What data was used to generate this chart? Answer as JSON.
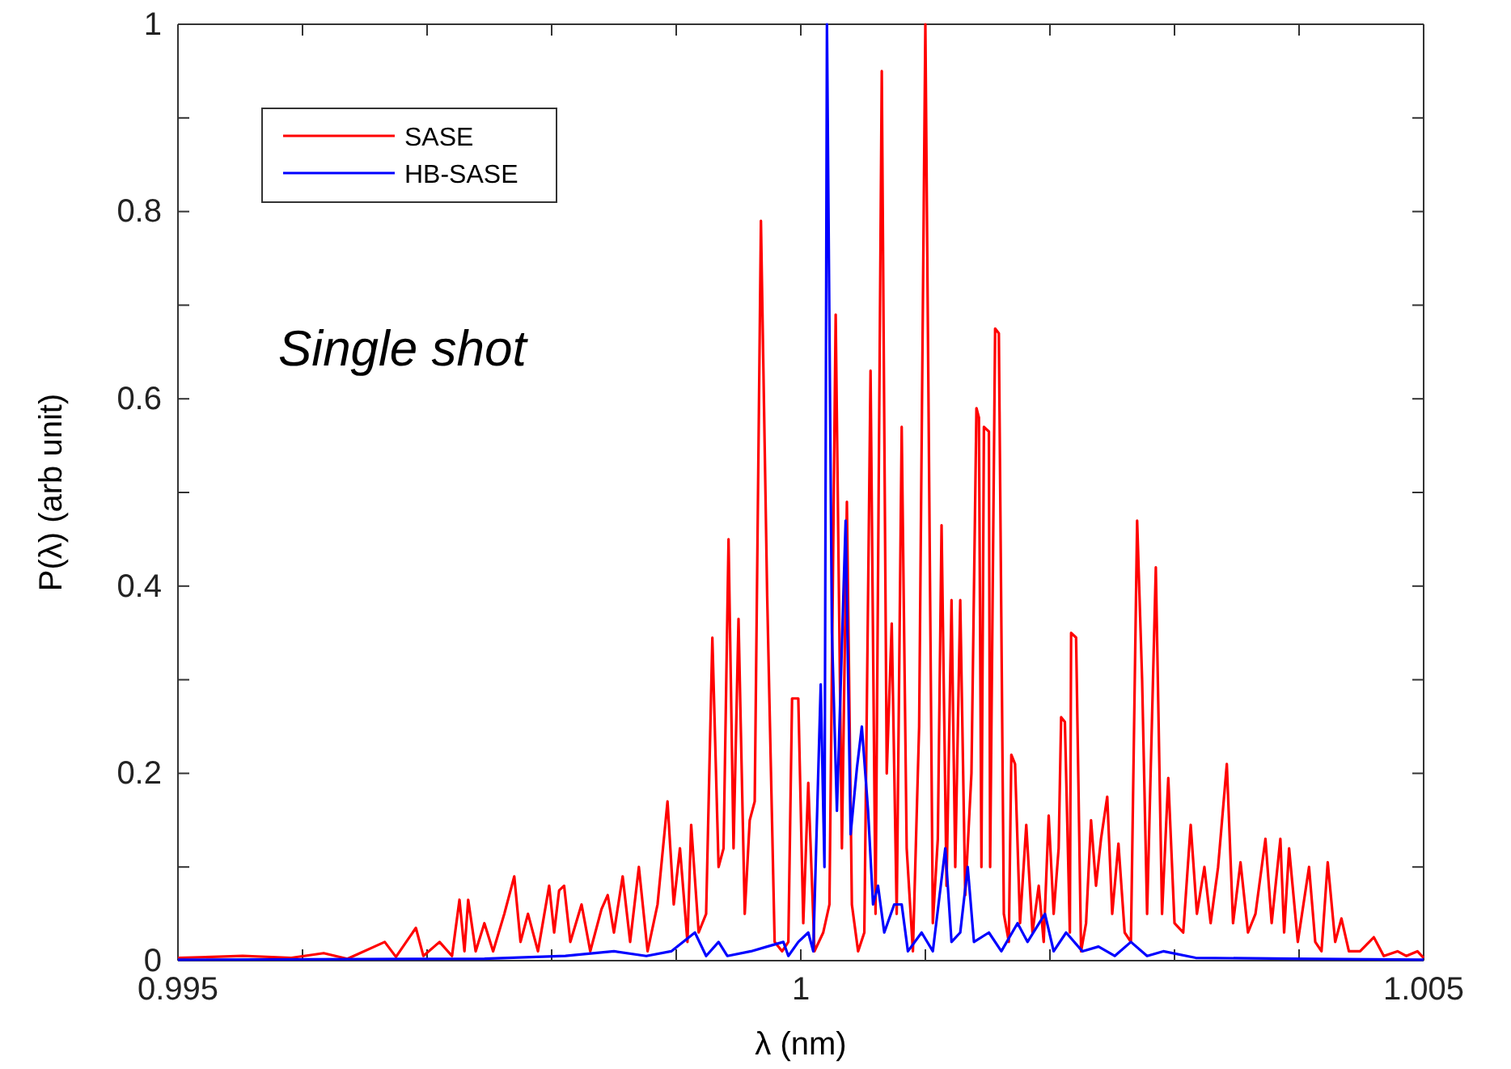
{
  "chart_data": {
    "type": "line",
    "xlabel": "λ (nm)",
    "ylabel": "P(λ) (arb unit)",
    "annotations": [
      "Single shot"
    ],
    "legend": "top left",
    "grid": false,
    "marker": "none",
    "line_style": "solid",
    "xlim": [
      0.995,
      1.005
    ],
    "xticks": [
      0.995,
      {
        "value": 0.996,
        "label": null
      },
      {
        "value": 0.997,
        "label": null
      },
      {
        "value": 0.998,
        "label": null
      },
      {
        "value": 0.999,
        "label": null
      },
      1,
      {
        "value": 1.001,
        "label": null
      },
      {
        "value": 1.002,
        "label": null
      },
      {
        "value": 1.003,
        "label": null
      },
      {
        "value": 1.004,
        "label": null
      },
      1.005
    ],
    "ylim": [
      0,
      1
    ],
    "yticks": [
      0,
      {
        "value": 0.1,
        "label": null
      },
      0.2,
      {
        "value": 0.3,
        "label": null
      },
      0.4,
      {
        "value": 0.5,
        "label": null
      },
      0.6,
      {
        "value": 0.7,
        "label": null
      },
      0.8,
      {
        "value": 0.9,
        "label": null
      },
      1
    ],
    "series": [
      {
        "name": "SASE",
        "color": "#ff0000",
        "x": [
          0.995,
          0.99552,
          0.99591,
          0.99617,
          0.99636,
          0.99666,
          0.99675,
          0.99691,
          0.99697,
          0.9971,
          0.9972,
          0.99726,
          0.9973,
          0.99733,
          0.99739,
          0.99746,
          0.99753,
          0.99762,
          0.9977,
          0.99775,
          0.99781,
          0.99789,
          0.99798,
          0.99802,
          0.99806,
          0.9981,
          0.99815,
          0.99824,
          0.99831,
          0.9984,
          0.99845,
          0.9985,
          0.99857,
          0.99863,
          0.9987,
          0.99877,
          0.99885,
          0.99893,
          0.99898,
          0.99903,
          0.99909,
          0.99912,
          0.99918,
          0.99924,
          0.99929,
          0.99934,
          0.99938,
          0.99942,
          0.99946,
          0.9995,
          0.99955,
          0.99959,
          0.99963,
          0.99968,
          0.99973,
          0.99979,
          0.99985,
          0.9999,
          0.99993,
          0.99998,
          1.00002,
          1.00006,
          1.00011,
          1.00018,
          1.00023,
          1.00028,
          1.00033,
          1.00037,
          1.00041,
          1.00046,
          1.00051,
          1.00056,
          1.0006,
          1.00065,
          1.00069,
          1.00073,
          1.00077,
          1.00081,
          1.00085,
          1.0009,
          1.00095,
          1.001,
          1.00106,
          1.0011,
          1.00113,
          1.00117,
          1.00121,
          1.00124,
          1.00128,
          1.00132,
          1.00137,
          1.00141,
          1.00143,
          1.00145,
          1.00147,
          1.00151,
          1.00152,
          1.00156,
          1.00159,
          1.00163,
          1.00167,
          1.00169,
          1.00172,
          1.00176,
          1.00181,
          1.00186,
          1.00191,
          1.00195,
          1.00199,
          1.00203,
          1.00207,
          1.00209,
          1.00212,
          1.00216,
          1.00217,
          1.00221,
          1.00225,
          1.00229,
          1.00233,
          1.00237,
          1.00241,
          1.00246,
          1.0025,
          1.00255,
          1.0026,
          1.00265,
          1.0027,
          1.00274,
          1.00278,
          1.00285,
          1.0029,
          1.00295,
          1.003,
          1.00307,
          1.00313,
          1.00318,
          1.00324,
          1.00329,
          1.00335,
          1.00342,
          1.00347,
          1.00353,
          1.00359,
          1.00365,
          1.00373,
          1.00378,
          1.00385,
          1.00388,
          1.00392,
          1.00399,
          1.00408,
          1.00413,
          1.00418,
          1.00423,
          1.00429,
          1.00434,
          1.0044,
          1.00449,
          1.0046,
          1.00468,
          1.00479,
          1.00486,
          1.00495,
          1.005
        ],
        "values": [
          0.003,
          0.005,
          0.003,
          0.008,
          0.002,
          0.02,
          0.004,
          0.035,
          0.005,
          0.02,
          0.005,
          0.065,
          0.01,
          0.065,
          0.01,
          0.04,
          0.01,
          0.05,
          0.09,
          0.02,
          0.05,
          0.01,
          0.08,
          0.03,
          0.075,
          0.08,
          0.02,
          0.06,
          0.01,
          0.055,
          0.07,
          0.03,
          0.09,
          0.02,
          0.1,
          0.01,
          0.06,
          0.17,
          0.06,
          0.12,
          0.02,
          0.145,
          0.03,
          0.05,
          0.345,
          0.1,
          0.12,
          0.45,
          0.12,
          0.365,
          0.05,
          0.15,
          0.17,
          0.79,
          0.39,
          0.02,
          0.01,
          0.02,
          0.28,
          0.28,
          0.04,
          0.19,
          0.01,
          0.03,
          0.06,
          0.69,
          0.12,
          0.49,
          0.06,
          0.01,
          0.03,
          0.63,
          0.05,
          0.95,
          0.2,
          0.36,
          0.05,
          0.57,
          0.12,
          0.01,
          0.25,
          1.0,
          0.04,
          0.13,
          0.465,
          0.08,
          0.385,
          0.1,
          0.385,
          0.07,
          0.2,
          0.59,
          0.58,
          0.1,
          0.57,
          0.565,
          0.1,
          0.675,
          0.67,
          0.05,
          0.02,
          0.22,
          0.21,
          0.04,
          0.145,
          0.03,
          0.08,
          0.02,
          0.155,
          0.05,
          0.12,
          0.26,
          0.255,
          0.03,
          0.35,
          0.345,
          0.01,
          0.04,
          0.15,
          0.08,
          0.13,
          0.175,
          0.05,
          0.125,
          0.03,
          0.02,
          0.47,
          0.3,
          0.05,
          0.42,
          0.05,
          0.195,
          0.04,
          0.03,
          0.145,
          0.05,
          0.1,
          0.04,
          0.1,
          0.21,
          0.04,
          0.105,
          0.03,
          0.05,
          0.13,
          0.04,
          0.13,
          0.03,
          0.12,
          0.02,
          0.1,
          0.02,
          0.01,
          0.105,
          0.02,
          0.045,
          0.01,
          0.01,
          0.025,
          0.005,
          0.01,
          0.005,
          0.01,
          0.003
        ]
      },
      {
        "name": "HB-SASE",
        "color": "#0000ff",
        "x": [
          0.995,
          0.99746,
          0.99811,
          0.9985,
          0.99876,
          0.99896,
          0.99915,
          0.99924,
          0.99934,
          0.99941,
          0.9996,
          0.99973,
          0.99986,
          0.9999,
          0.99998,
          1.00006,
          1.0001,
          1.00016,
          1.00019,
          1.00021,
          1.00025,
          1.00029,
          1.00036,
          1.0004,
          1.00045,
          1.00049,
          1.00054,
          1.00058,
          1.00062,
          1.00067,
          1.00075,
          1.00081,
          1.00086,
          1.00097,
          1.00106,
          1.00116,
          1.00121,
          1.00128,
          1.00134,
          1.00139,
          1.00151,
          1.00161,
          1.00174,
          1.00182,
          1.00196,
          1.00203,
          1.00213,
          1.00226,
          1.00239,
          1.00252,
          1.00265,
          1.00278,
          1.00291,
          1.00317,
          1.00395,
          1.005
        ],
        "values": [
          0.001,
          0.002,
          0.005,
          0.01,
          0.005,
          0.01,
          0.03,
          0.005,
          0.02,
          0.005,
          0.01,
          0.015,
          0.02,
          0.005,
          0.02,
          0.03,
          0.01,
          0.295,
          0.1,
          1.0,
          0.35,
          0.16,
          0.47,
          0.135,
          0.205,
          0.25,
          0.16,
          0.06,
          0.08,
          0.03,
          0.06,
          0.06,
          0.01,
          0.03,
          0.01,
          0.12,
          0.02,
          0.03,
          0.1,
          0.02,
          0.03,
          0.01,
          0.04,
          0.02,
          0.05,
          0.01,
          0.03,
          0.01,
          0.015,
          0.005,
          0.02,
          0.005,
          0.01,
          0.003,
          0.002,
          0.001
        ]
      }
    ]
  }
}
